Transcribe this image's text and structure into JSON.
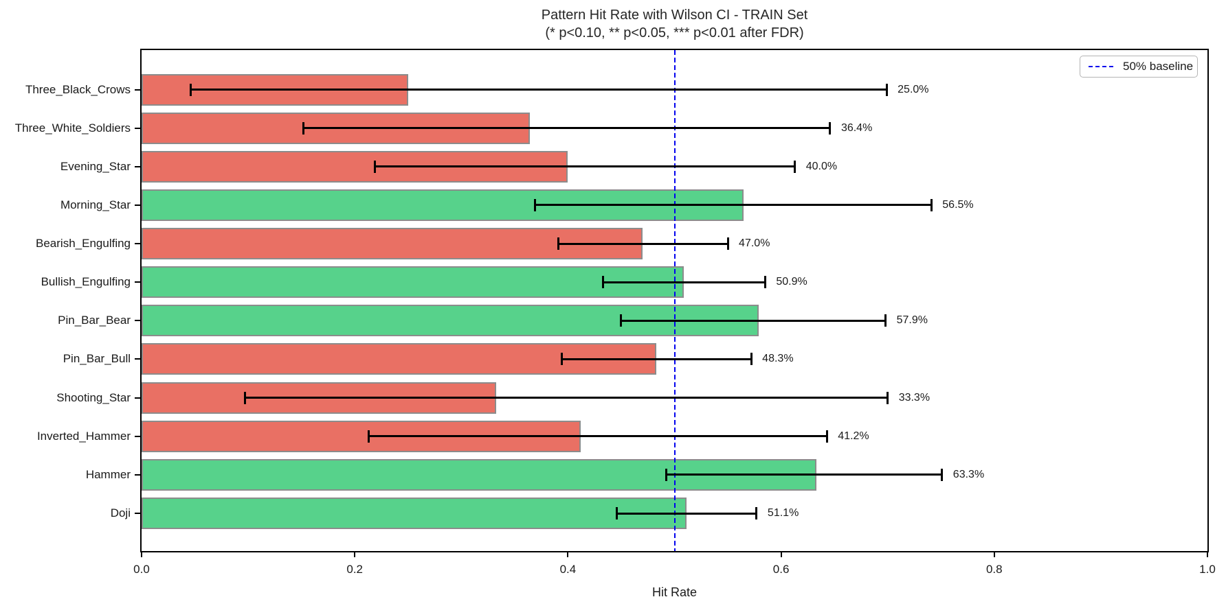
{
  "title": "Pattern Hit Rate with Wilson CI - TRAIN Set",
  "subtitle": "(* p<0.10, ** p<0.05, *** p<0.01 after FDR)",
  "legend": {
    "entries": [
      {
        "label": "50% baseline",
        "style": "dashed",
        "color": "#0000EE"
      }
    ],
    "position": "upper-right"
  },
  "chart_data": {
    "type": "bar",
    "orientation": "horizontal",
    "title": "Pattern Hit Rate with Wilson CI - TRAIN Set",
    "subtitle": "(* p<0.10, ** p<0.05, *** p<0.01 after FDR)",
    "xlabel": "Hit Rate",
    "ylabel": "",
    "xlim": [
      0.0,
      1.0
    ],
    "x_ticks": [
      0.0,
      0.2,
      0.4,
      0.6,
      0.8,
      1.0
    ],
    "x_tick_labels": [
      "0.0",
      "0.2",
      "0.4",
      "0.6",
      "0.8",
      "1.0"
    ],
    "grid": false,
    "baseline": {
      "value": 0.5,
      "label": "50% baseline",
      "color": "#0000EE",
      "style": "dashed"
    },
    "colors": {
      "above_baseline": "#57D28B",
      "below_baseline": "#E97064",
      "bar_edge": "#8C8C8C",
      "error_bar": "#000000"
    },
    "rows": [
      {
        "pattern": "Three_Black_Crows",
        "hit_rate": 0.25,
        "label": "25.0%",
        "ci_low": 0.046,
        "ci_high": 0.699,
        "color": "#E97064"
      },
      {
        "pattern": "Three_White_Soldiers",
        "hit_rate": 0.364,
        "label": "36.4%",
        "ci_low": 0.152,
        "ci_high": 0.646,
        "color": "#E97064"
      },
      {
        "pattern": "Evening_Star",
        "hit_rate": 0.4,
        "label": "40.0%",
        "ci_low": 0.219,
        "ci_high": 0.613,
        "color": "#E97064"
      },
      {
        "pattern": "Morning_Star",
        "hit_rate": 0.565,
        "label": "56.5%",
        "ci_low": 0.369,
        "ci_high": 0.741,
        "color": "#57D28B"
      },
      {
        "pattern": "Bearish_Engulfing",
        "hit_rate": 0.47,
        "label": "47.0%",
        "ci_low": 0.391,
        "ci_high": 0.55,
        "color": "#E97064"
      },
      {
        "pattern": "Bullish_Engulfing",
        "hit_rate": 0.509,
        "label": "50.9%",
        "ci_low": 0.433,
        "ci_high": 0.585,
        "color": "#57D28B"
      },
      {
        "pattern": "Pin_Bar_Bear",
        "hit_rate": 0.579,
        "label": "57.9%",
        "ci_low": 0.45,
        "ci_high": 0.698,
        "color": "#57D28B"
      },
      {
        "pattern": "Pin_Bar_Bull",
        "hit_rate": 0.483,
        "label": "48.3%",
        "ci_low": 0.394,
        "ci_high": 0.572,
        "color": "#E97064"
      },
      {
        "pattern": "Shooting_Star",
        "hit_rate": 0.333,
        "label": "33.3%",
        "ci_low": 0.097,
        "ci_high": 0.7,
        "color": "#E97064"
      },
      {
        "pattern": "Inverted_Hammer",
        "hit_rate": 0.412,
        "label": "41.2%",
        "ci_low": 0.213,
        "ci_high": 0.643,
        "color": "#E97064"
      },
      {
        "pattern": "Hammer",
        "hit_rate": 0.633,
        "label": "63.3%",
        "ci_low": 0.492,
        "ci_high": 0.751,
        "color": "#57D28B"
      },
      {
        "pattern": "Doji",
        "hit_rate": 0.511,
        "label": "51.1%",
        "ci_low": 0.446,
        "ci_high": 0.577,
        "color": "#57D28B"
      }
    ]
  }
}
